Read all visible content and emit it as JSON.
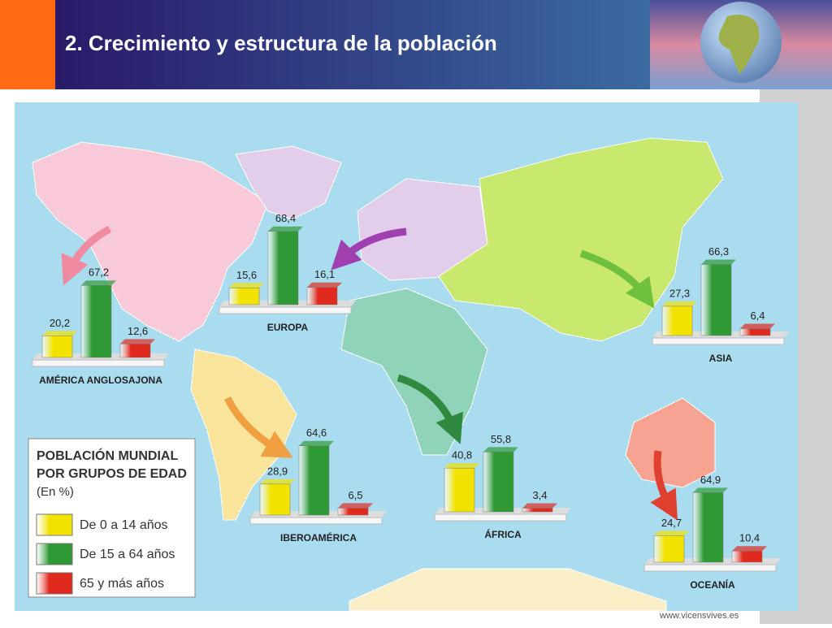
{
  "slide_title": "2. Crecimiento y estructura de la población",
  "legend": {
    "title_lines": [
      "POBLACIÓN MUNDIAL",
      "POR GRUPOS DE EDAD"
    ],
    "unit": "(En %)",
    "series": [
      {
        "name": "De 0 a 14 años",
        "color": "#f2e200"
      },
      {
        "name": "De 15 a 64 años",
        "color": "#2f9a35"
      },
      {
        "name": "65 y más años",
        "color": "#e02a1e"
      }
    ]
  },
  "chart_data": [
    {
      "type": "bar",
      "title": "AMÉRICA ANGLOSAJONA",
      "values": [
        20.2,
        67.2,
        12.6
      ],
      "value_labels": [
        "20,2",
        "67,2",
        "12,6"
      ]
    },
    {
      "type": "bar",
      "title": "EUROPA",
      "values": [
        15.6,
        68.4,
        16.1
      ],
      "value_labels": [
        "15,6",
        "68,4",
        "16,1"
      ]
    },
    {
      "type": "bar",
      "title": "ASIA",
      "values": [
        27.3,
        66.3,
        6.4
      ],
      "value_labels": [
        "27,3",
        "66,3",
        "6,4"
      ]
    },
    {
      "type": "bar",
      "title": "IBEROAMÉRICA",
      "values": [
        28.9,
        64.6,
        6.5
      ],
      "value_labels": [
        "28,9",
        "64,6",
        "6,5"
      ]
    },
    {
      "type": "bar",
      "title": "ÁFRICA",
      "values": [
        40.8,
        55.8,
        3.4
      ],
      "value_labels": [
        "40,8",
        "55,8",
        "3,4"
      ]
    },
    {
      "type": "bar",
      "title": "OCEANÍA",
      "values": [
        24.7,
        64.9,
        10.4
      ],
      "value_labels": [
        "24,7",
        "64,9",
        "10,4"
      ]
    }
  ],
  "footer": "www.vicensvives.es"
}
